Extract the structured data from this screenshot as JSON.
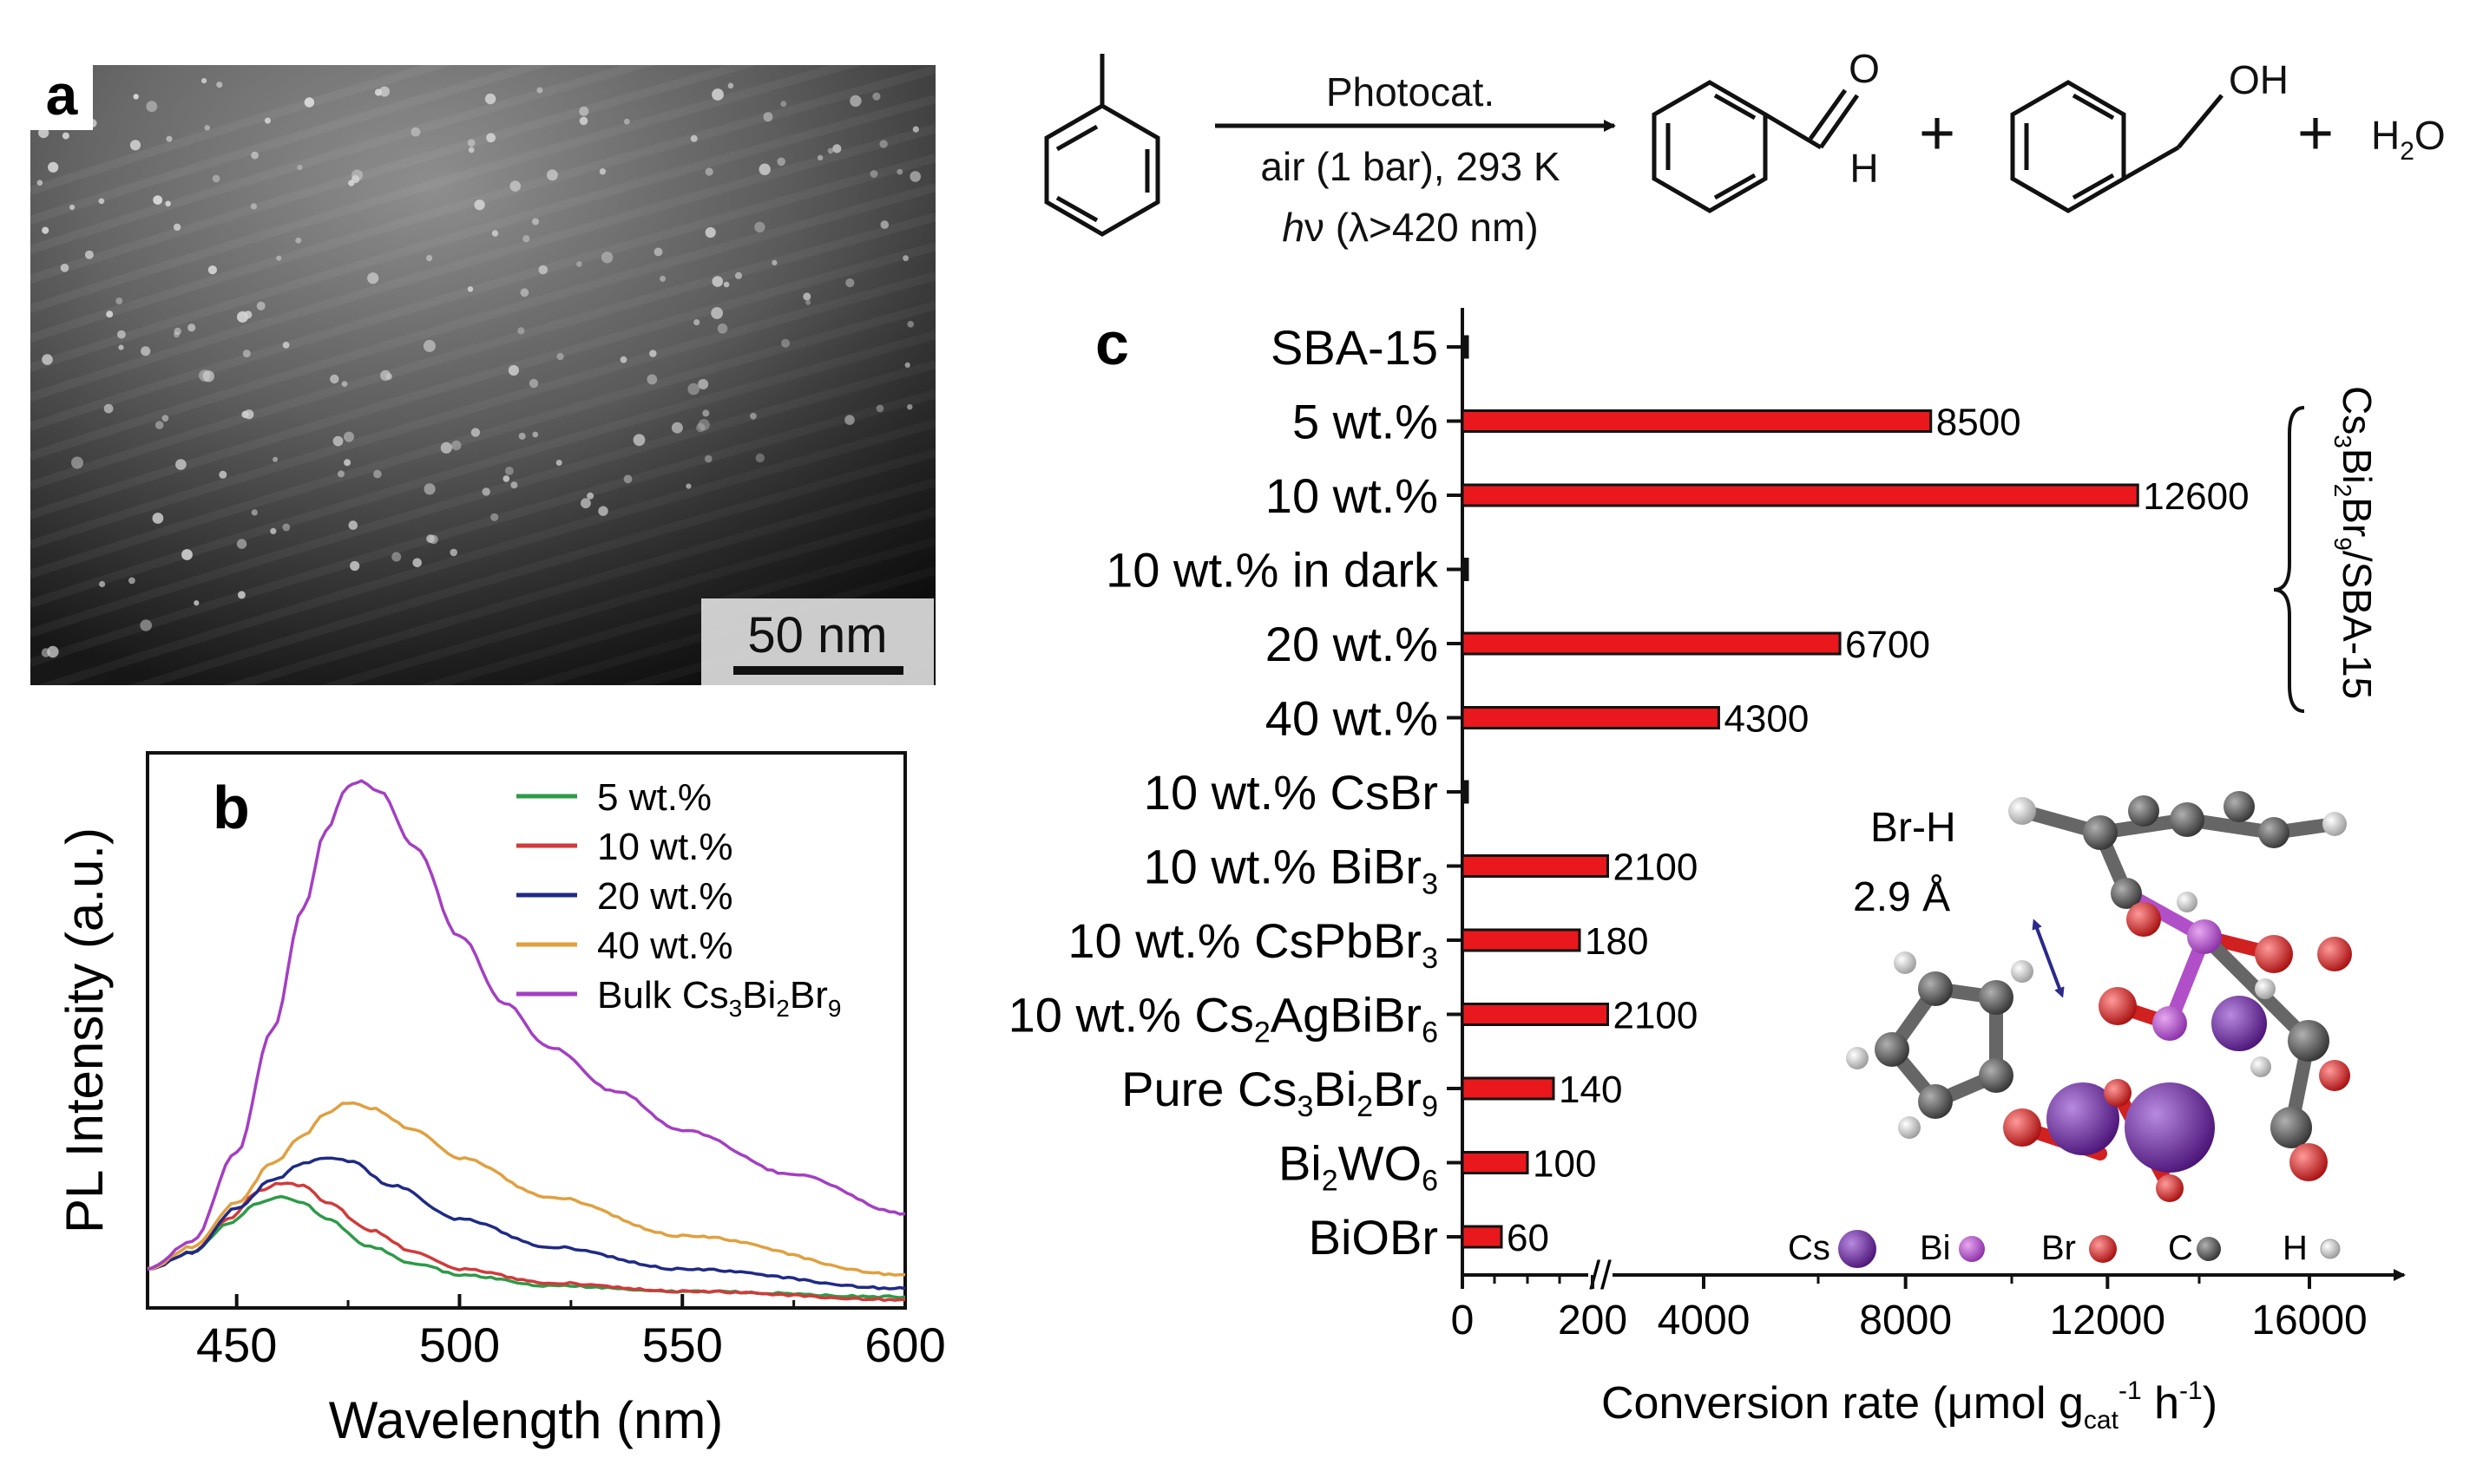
{
  "panel_a": {
    "letter": "a",
    "scale_label": "50 nm",
    "colors": {
      "bg_dark": "#1c1c1c",
      "bg_light": "#8a8a8a",
      "dots": "#e6e6e6"
    }
  },
  "reaction": {
    "reagent_above": "Photocat.",
    "condition_1": "air (1 bar), 293 K",
    "condition_2_prefix": "h",
    "condition_2_nu": "ν",
    "condition_2_rest": " (λ>420 nm)",
    "aldehyde_O": "O",
    "aldehyde_H": "H",
    "alcohol_OH": "OH",
    "plus": "+",
    "water": "H",
    "water_sub": "2",
    "water_O": "O"
  },
  "panel_b_legend": [
    {
      "label": "5 wt.%",
      "color": "#2e9a48"
    },
    {
      "label": "10 wt.%",
      "color": "#d23a3a"
    },
    {
      "label": "20 wt.%",
      "color": "#1f2a86"
    },
    {
      "label": "40 wt.%",
      "color": "#e0a040"
    },
    {
      "label": "Bulk Cs",
      "sub1": "3",
      "mid1": "Bi",
      "sub2": "2",
      "mid2": "Br",
      "sub3": "9",
      "color": "#a43fc2"
    }
  ],
  "panel_c_legend": {
    "cs": "Cs",
    "bi": "Bi",
    "br": "Br",
    "c": "C",
    "h": "H",
    "cs_color": "#6a2a9a",
    "bi_color": "#b04fc7",
    "br_color": "#e03030",
    "c_color": "#555555",
    "h_color": "#333333"
  },
  "panel_c_inset": {
    "distance_label": "Br-H",
    "distance_value": "2.9 Å",
    "label_color": "#2a2a8a"
  },
  "panel_c_bracket": {
    "p1": "Cs",
    "s1": "3",
    "p2": "Bi",
    "s2": "2",
    "p3": "Br",
    "s3": "9",
    "p4": "/SBA-15"
  },
  "chart_data": [
    {
      "type": "line",
      "panel": "b",
      "title": "",
      "xlabel": "Wavelength (nm)",
      "ylabel": "PL Intensity (a.u.)",
      "xlim": [
        430,
        600
      ],
      "ylim": [
        0,
        1.0
      ],
      "xticks": [
        450,
        500,
        550,
        600
      ],
      "yticks_labeled": false,
      "series": [
        {
          "name": "5 wt.%",
          "color": "#2e9a48",
          "x": [
            430,
            440,
            448,
            455,
            460,
            465,
            470,
            480,
            490,
            500,
            520,
            550,
            600
          ],
          "y": [
            0.07,
            0.1,
            0.15,
            0.19,
            0.2,
            0.19,
            0.16,
            0.11,
            0.08,
            0.06,
            0.04,
            0.03,
            0.02
          ]
        },
        {
          "name": "10 wt.%",
          "color": "#d23a3a",
          "x": [
            430,
            440,
            448,
            455,
            460,
            465,
            470,
            480,
            490,
            500,
            520,
            550,
            600
          ],
          "y": [
            0.07,
            0.1,
            0.16,
            0.21,
            0.225,
            0.22,
            0.19,
            0.14,
            0.1,
            0.07,
            0.045,
            0.03,
            0.015
          ]
        },
        {
          "name": "20 wt.%",
          "color": "#1f2a86",
          "x": [
            430,
            440,
            450,
            458,
            465,
            470,
            475,
            485,
            500,
            520,
            550,
            600
          ],
          "y": [
            0.07,
            0.1,
            0.18,
            0.23,
            0.26,
            0.27,
            0.265,
            0.22,
            0.16,
            0.11,
            0.07,
            0.035
          ]
        },
        {
          "name": "40 wt.%",
          "color": "#e0a040",
          "x": [
            430,
            440,
            450,
            458,
            465,
            470,
            475,
            480,
            490,
            500,
            520,
            550,
            600
          ],
          "y": [
            0.07,
            0.11,
            0.19,
            0.26,
            0.31,
            0.35,
            0.37,
            0.36,
            0.32,
            0.27,
            0.2,
            0.13,
            0.06
          ]
        },
        {
          "name": "Bulk Cs3Bi2Br9",
          "color": "#a43fc2",
          "x": [
            430,
            440,
            450,
            458,
            465,
            470,
            475,
            478,
            482,
            490,
            500,
            510,
            520,
            535,
            550,
            575,
            600
          ],
          "y": [
            0.07,
            0.12,
            0.28,
            0.5,
            0.72,
            0.86,
            0.94,
            0.95,
            0.93,
            0.83,
            0.67,
            0.55,
            0.47,
            0.39,
            0.32,
            0.24,
            0.17
          ]
        }
      ]
    },
    {
      "type": "bar",
      "panel": "c",
      "title": "",
      "xlabel_prefix": "Conversion rate (μmol g",
      "xlabel_sub": "cat",
      "xlabel_sup": "-1",
      "xlabel_mid": " h",
      "xlabel_sup2": "-1",
      "xlabel_suffix": ")",
      "axis_break": "//",
      "xticks": [
        "0",
        "200",
        "4000",
        "8000",
        "12000",
        "16000"
      ],
      "categories": [
        {
          "label": "SBA-15"
        },
        {
          "label": "5 wt.%"
        },
        {
          "label": "10 wt.%"
        },
        {
          "label": "10 wt.% in dark"
        },
        {
          "label": "20 wt.%"
        },
        {
          "label": "40 wt.%"
        },
        {
          "label": "10 wt.% CsBr"
        },
        {
          "label": "10 wt.% BiBr",
          "sub": "3"
        },
        {
          "label": "10 wt.% CsPbBr",
          "sub": "3"
        },
        {
          "label": "10 wt.% Cs",
          "sub": "2",
          "tail": "AgBiBr",
          "sub2": "6"
        },
        {
          "label": "Pure Cs",
          "sub": "3",
          "tail": "Bi",
          "sub2": "2",
          "tail2": "Br",
          "sub3": "9"
        },
        {
          "label": "Bi",
          "sub": "2",
          "tail": "WO",
          "sub2": "6"
        },
        {
          "label": "BiOBr"
        }
      ],
      "values": [
        0,
        8500,
        12600,
        0,
        6700,
        4300,
        0,
        2100,
        180,
        2100,
        140,
        100,
        60
      ],
      "value_labels": [
        "",
        "8500",
        "12600",
        "",
        "6700",
        "4300",
        "",
        "2100",
        "180",
        "2100",
        "140",
        "100",
        "60"
      ],
      "bar_color": "#e8181c"
    }
  ]
}
